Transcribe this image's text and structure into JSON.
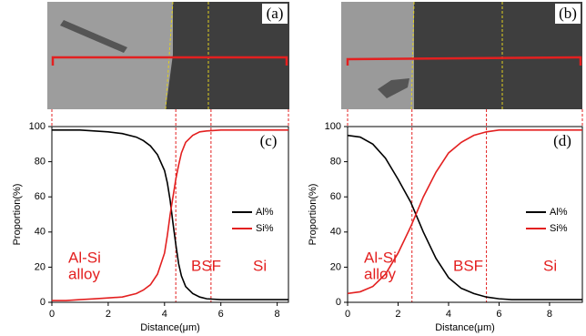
{
  "chart_data": [
    {
      "type": "line",
      "image_label": "(a)",
      "panel_label": "(c)",
      "x_label": "Distance(μm)",
      "y_label": "Proportion(%)",
      "xlim": [
        0,
        8.4
      ],
      "xticks": [
        0,
        2,
        4,
        6,
        8
      ],
      "ylim": [
        0,
        100
      ],
      "yticks": [
        0,
        20,
        40,
        60,
        80,
        100
      ],
      "grid": false,
      "legend": "right",
      "boundaries": [
        4.4,
        5.65
      ],
      "annotations": [
        "Al-Si",
        "alloy",
        "BSF",
        "Si"
      ],
      "x": [
        0,
        0.5,
        1,
        1.5,
        2,
        2.5,
        3,
        3.25,
        3.5,
        3.75,
        4,
        4.1,
        4.2,
        4.3,
        4.4,
        4.5,
        4.6,
        4.75,
        5,
        5.25,
        5.5,
        6,
        6.5,
        7,
        7.5,
        8,
        8.4
      ],
      "series": [
        {
          "name": "Al%",
          "color": "#000000",
          "values": [
            98,
            98,
            98,
            97.5,
            97,
            96,
            94,
            92,
            89,
            84,
            75,
            68,
            58,
            45,
            33,
            22,
            15,
            9,
            5,
            3,
            2,
            1.5,
            1.5,
            1.5,
            1.5,
            1.5,
            1.5
          ]
        },
        {
          "name": "Si%",
          "color": "#e32020",
          "values": [
            1,
            1,
            1.5,
            2,
            2.5,
            3,
            5,
            7,
            10,
            16,
            28,
            38,
            50,
            60,
            70,
            78,
            85,
            91,
            95,
            97,
            97.5,
            98,
            98,
            98,
            98,
            98,
            98
          ]
        }
      ]
    },
    {
      "type": "line",
      "image_label": "(b)",
      "panel_label": "(d)",
      "x_label": "Distance(μm)",
      "y_label": "Proportion(%)",
      "xlim": [
        0,
        9.3
      ],
      "xticks": [
        0,
        2,
        4,
        6,
        8
      ],
      "ylim": [
        0,
        100
      ],
      "yticks": [
        0,
        20,
        40,
        60,
        80,
        100
      ],
      "grid": false,
      "legend": "right",
      "boundaries": [
        2.55,
        5.5
      ],
      "annotations": [
        "Al-Si",
        "alloy",
        "BSF",
        "Si"
      ],
      "x": [
        0,
        0.5,
        1,
        1.5,
        2,
        2.5,
        3,
        3.5,
        4,
        4.5,
        5,
        5.5,
        6,
        6.5,
        7,
        7.5,
        8,
        8.5,
        9,
        9.3
      ],
      "series": [
        {
          "name": "Al%",
          "color": "#000000",
          "values": [
            95,
            94,
            90,
            82,
            70,
            57,
            40,
            25,
            14,
            8,
            5,
            3,
            2,
            1.5,
            1.5,
            1.5,
            1.5,
            1.5,
            1.5,
            1.5
          ]
        },
        {
          "name": "Si%",
          "color": "#e32020",
          "values": [
            5,
            6,
            9,
            16,
            28,
            43,
            60,
            74,
            85,
            91,
            95,
            97,
            98,
            98,
            98,
            98,
            98,
            98,
            98,
            98
          ]
        }
      ]
    }
  ]
}
